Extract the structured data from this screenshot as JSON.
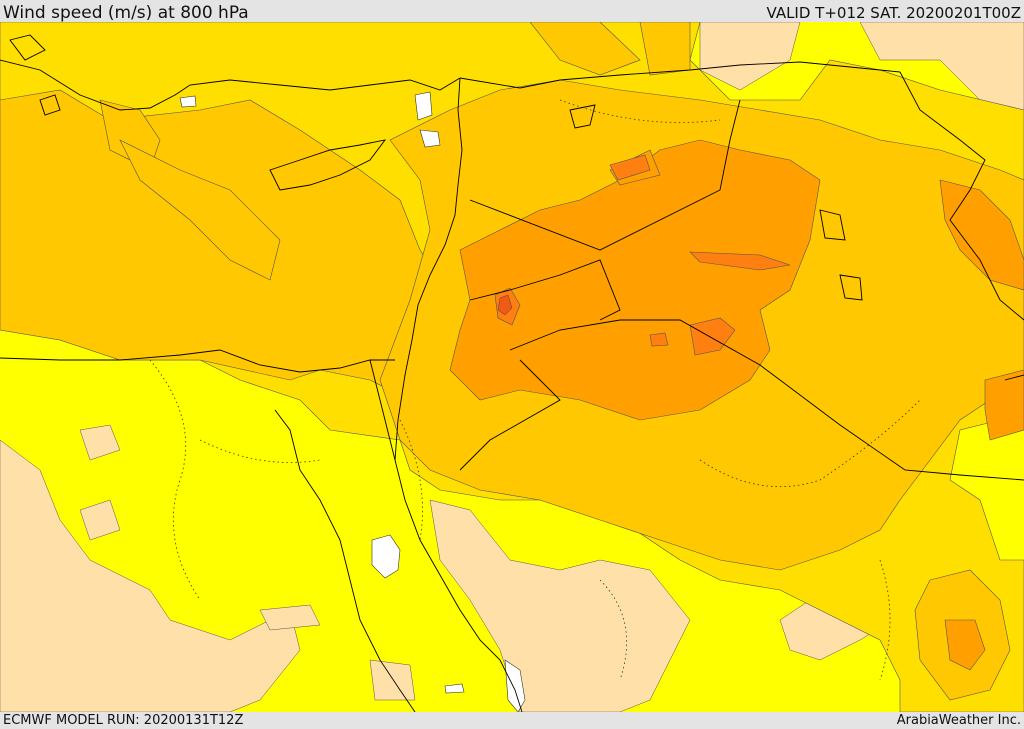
{
  "header": {
    "title": "Wind speed (m/s) at 800 hPa",
    "valid": "VALID T+012 SAT. 20200201T00Z"
  },
  "footer": {
    "model_run": "ECMWF MODEL RUN: 20200131T12Z",
    "credit": "ArabiaWeather Inc."
  },
  "map": {
    "variable": "Wind speed at 800 hPa",
    "colors": {
      "calm": "#ffe0a8",
      "light": "#ffff00",
      "moderate": "#ffdf00",
      "fresh": "#ffc800",
      "strong": "#ffa000",
      "very_strong": "#ff7f10",
      "max": "#f05a14",
      "land_water_white": "#ffffff",
      "border": "#000000"
    }
  }
}
